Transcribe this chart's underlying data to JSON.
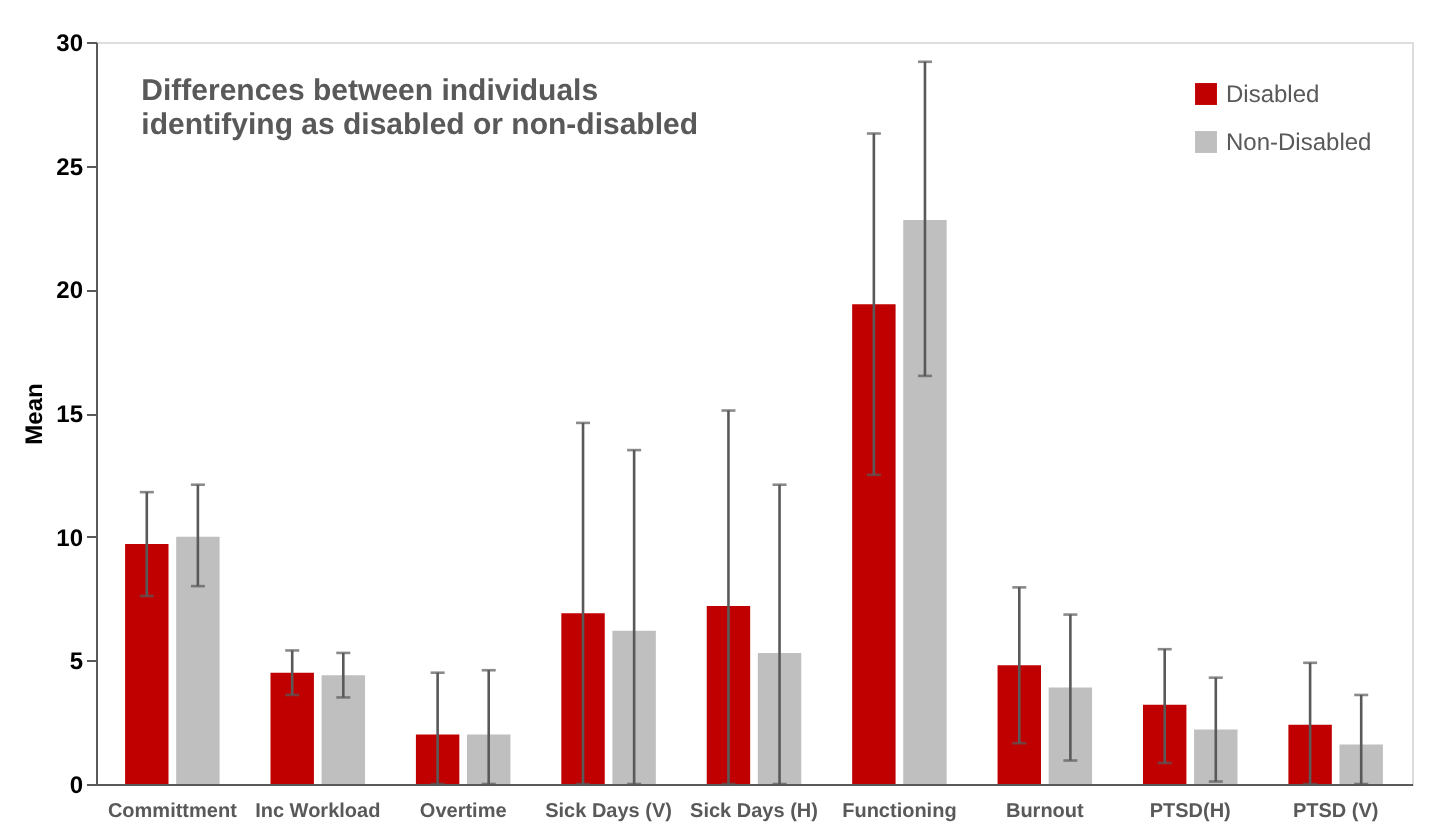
{
  "chart_data": {
    "type": "bar",
    "title": "Differences between individuals identifying as disabled or non-disabled",
    "ylabel": "Mean",
    "categories": [
      "Committment",
      "Inc Workload",
      "Overtime",
      "Sick Days (V)",
      "Sick Days (H)",
      "Functioning",
      "Burnout",
      "PTSD(H)",
      "PTSD (V)"
    ],
    "series": [
      {
        "name": "Disabled",
        "color": "#c00000",
        "values": [
          9.7,
          4.5,
          2.0,
          6.9,
          7.2,
          19.4,
          4.8,
          3.2,
          2.4
        ],
        "errors": [
          [
            7.6,
            11.8
          ],
          [
            3.6,
            5.4
          ],
          [
            0,
            4.5
          ],
          [
            0,
            14.6
          ],
          [
            0,
            15.1
          ],
          [
            12.5,
            26.3
          ],
          [
            1.65,
            7.95
          ],
          [
            0.85,
            5.45
          ],
          [
            0,
            4.9
          ]
        ]
      },
      {
        "name": "Non-Disabled",
        "color": "#bfbfbf",
        "values": [
          10.0,
          4.4,
          2.0,
          6.2,
          5.3,
          22.8,
          3.9,
          2.2,
          1.6
        ],
        "errors": [
          [
            8.0,
            12.1
          ],
          [
            3.5,
            5.3
          ],
          [
            0,
            4.6
          ],
          [
            0,
            13.5
          ],
          [
            0,
            12.1
          ],
          [
            16.5,
            29.2
          ],
          [
            0.95,
            6.85
          ],
          [
            0.1,
            4.3
          ],
          [
            0,
            3.6
          ]
        ]
      }
    ],
    "ylim": [
      0,
      30
    ],
    "yticks": [
      0,
      5,
      10,
      15,
      20,
      25,
      30
    ],
    "grid": false,
    "legend": "top right"
  }
}
